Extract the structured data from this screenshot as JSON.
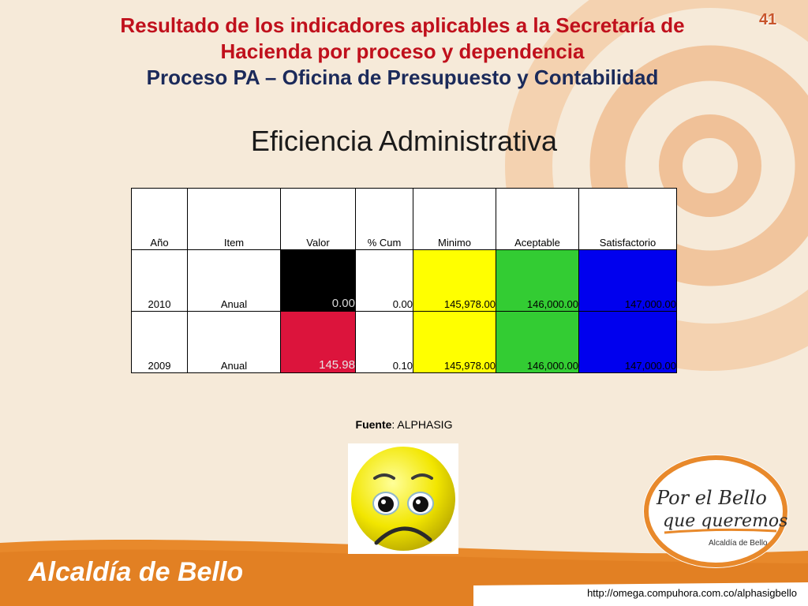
{
  "slide": {
    "page_number": "41",
    "title_line1": "Resultado de los indicadores aplicables a la Secretaría de",
    "title_line2": "Hacienda por proceso y dependencia",
    "subtitle": "Proceso PA – Oficina de Presupuesto y Contabilidad",
    "section_title": "Eficiencia Administrativa"
  },
  "table": {
    "headers": [
      "Año",
      "Item",
      "Valor",
      "% Cum",
      "Minimo",
      "Aceptable",
      "Satisfactorio"
    ],
    "rows": [
      {
        "year": "2010",
        "item": "Anual",
        "valor": "0.00",
        "cum": "0.00",
        "minimo": "145,978.00",
        "aceptable": "146,000.00",
        "satisfactorio": "147,000.00"
      },
      {
        "year": "2009",
        "item": "Anual",
        "valor": "145.98",
        "cum": "0.10",
        "minimo": "145,978.00",
        "aceptable": "146,000.00",
        "satisfactorio": "147,000.00"
      }
    ]
  },
  "source": {
    "label": "Fuente",
    "value": ": ALPHASIG"
  },
  "logo": {
    "line1": "Por el Bello",
    "line2": "que queremos",
    "line3": "Alcaldía de Bello"
  },
  "footer": {
    "brand": "Alcaldía de Bello",
    "url": "http://omega.compuhora.com.co/alphasigbello"
  },
  "colors": {
    "accent_orange": "#e8892b",
    "title_red": "#c0101c",
    "title_blue": "#1b2a5a"
  }
}
